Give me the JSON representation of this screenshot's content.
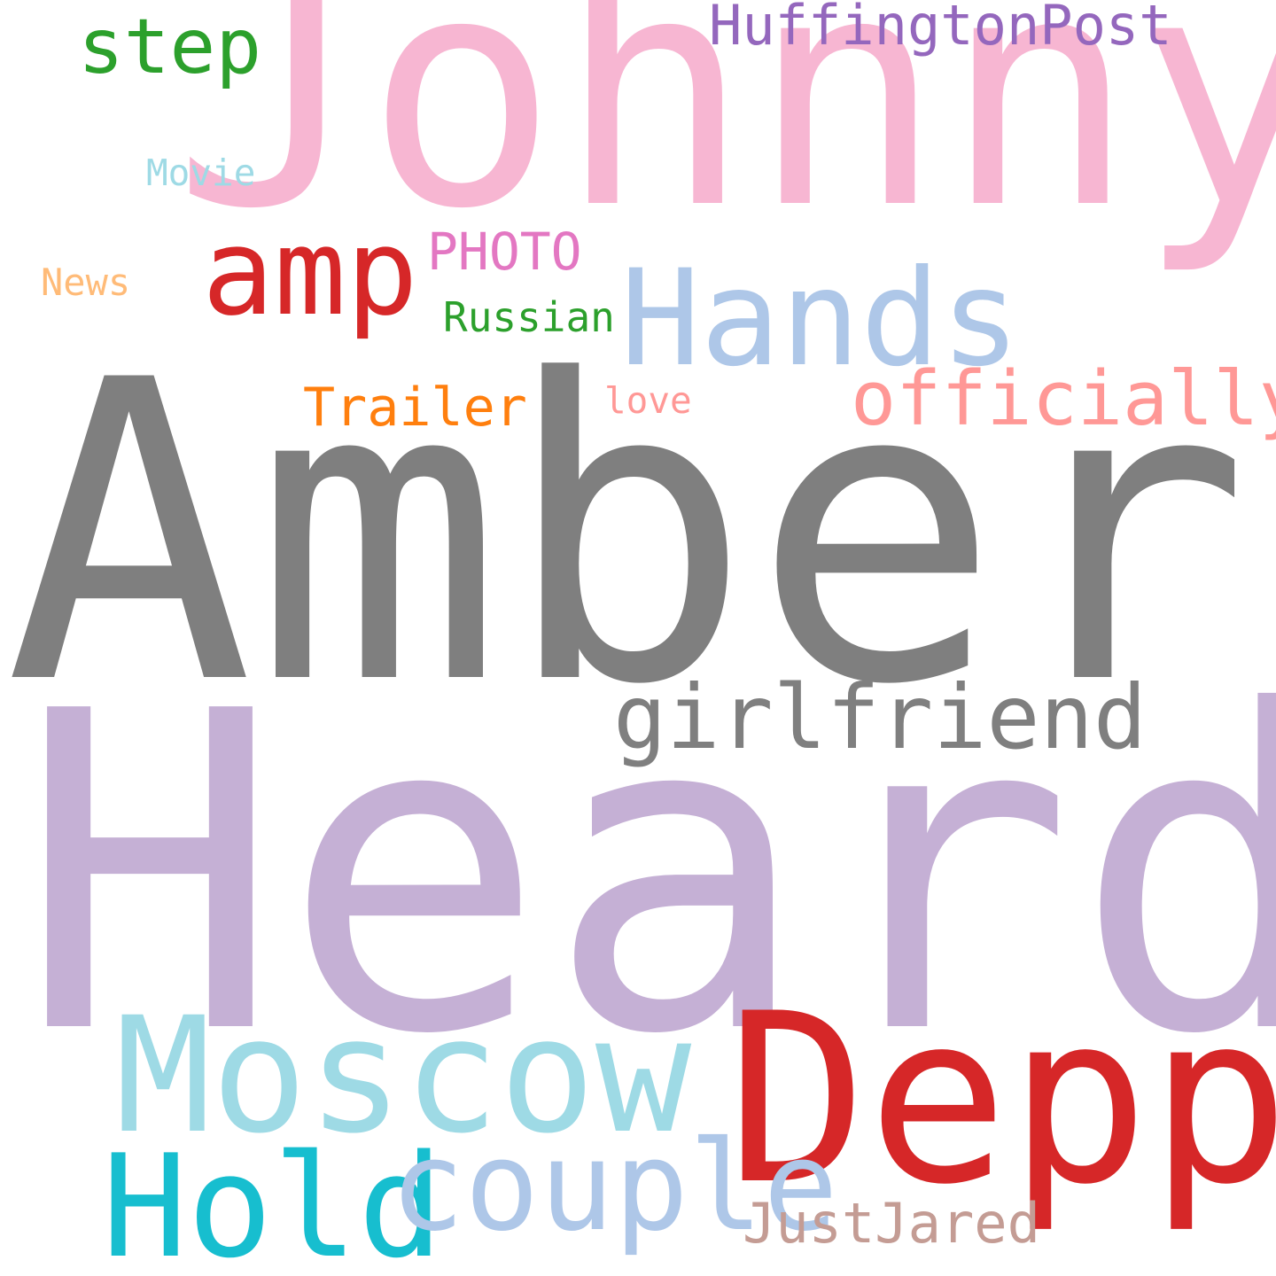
{
  "word_cloud": {
    "background": "#ffffff",
    "words": {
      "johnny": {
        "text": "Johnny",
        "color": "#f7b6d2"
      },
      "amber": {
        "text": "Amber",
        "color": "#7f7f7f"
      },
      "heard": {
        "text": "Heard",
        "color": "#c5b0d5"
      },
      "depp": {
        "text": "Depp",
        "color": "#d62728"
      },
      "moscow": {
        "text": "Moscow",
        "color": "#9edae5"
      },
      "hold": {
        "text": "Hold",
        "color": "#17becf"
      },
      "couple": {
        "text": "couple",
        "color": "#aec7e8"
      },
      "hands": {
        "text": "Hands",
        "color": "#aec7e8"
      },
      "amp": {
        "text": "amp",
        "color": "#d62728"
      },
      "girlfriend": {
        "text": "girlfriend",
        "color": "#7f7f7f"
      },
      "officially": {
        "text": "officially",
        "color": "#ff9896"
      },
      "step": {
        "text": "step",
        "color": "#2ca02c"
      },
      "huffington": {
        "text": "HuffingtonPost",
        "color": "#9467bd"
      },
      "justjared": {
        "text": "JustJared",
        "color": "#c49c94"
      },
      "trailer": {
        "text": "Trailer",
        "color": "#ff7f0e"
      },
      "photo": {
        "text": "PHOTO",
        "color": "#e377c2"
      },
      "russian": {
        "text": "Russian",
        "color": "#2ca02c"
      },
      "movie": {
        "text": "Movie",
        "color": "#9edae5"
      },
      "news": {
        "text": "News",
        "color": "#ffbb78"
      },
      "love": {
        "text": "love",
        "color": "#ff9896"
      }
    }
  }
}
